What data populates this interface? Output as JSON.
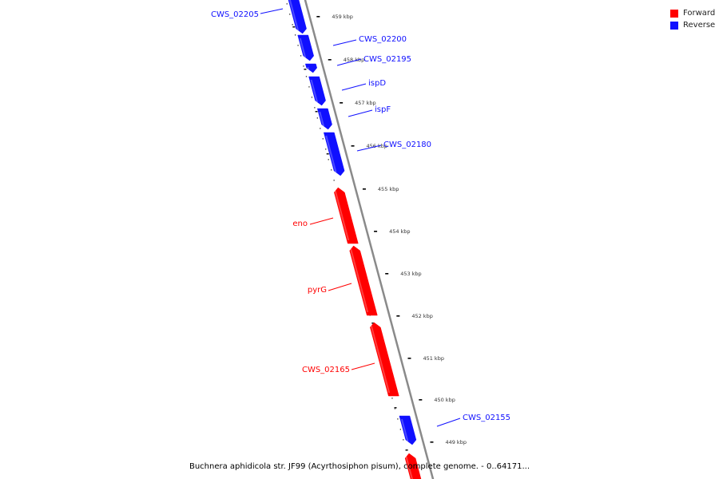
{
  "colors": {
    "forward": "#ff0000",
    "reverse": "#1010ff",
    "backbone": "#8a8a8a"
  },
  "legend": [
    {
      "label": "Forward",
      "color": "#ff0000"
    },
    {
      "label": "Reverse",
      "color": "#1010ff"
    }
  ],
  "caption": "Buchnera aphidicola str. JF99 (Acyrthosiphon pisum), complete genome. - 0..64171...",
  "ticks": [
    "459 kbp",
    "458 kbp",
    "457 kbp",
    "456 kbp",
    "455 kbp",
    "454 kbp",
    "453 kbp",
    "452 kbp",
    "451 kbp",
    "450 kbp",
    "449 kbp"
  ],
  "genes": [
    {
      "name": "CWS_02205",
      "strand": "reverse"
    },
    {
      "name": "CWS_02200",
      "strand": "reverse"
    },
    {
      "name": "CWS_02195",
      "strand": "reverse"
    },
    {
      "name": "ispD",
      "strand": "reverse"
    },
    {
      "name": "ispF",
      "strand": "reverse"
    },
    {
      "name": "CWS_02180",
      "strand": "reverse"
    },
    {
      "name": "eno",
      "strand": "forward"
    },
    {
      "name": "pyrG",
      "strand": "forward"
    },
    {
      "name": "CWS_02165",
      "strand": "forward"
    },
    {
      "name": "CWS_02155",
      "strand": "reverse"
    },
    {
      "name": "",
      "strand": "forward"
    }
  ]
}
